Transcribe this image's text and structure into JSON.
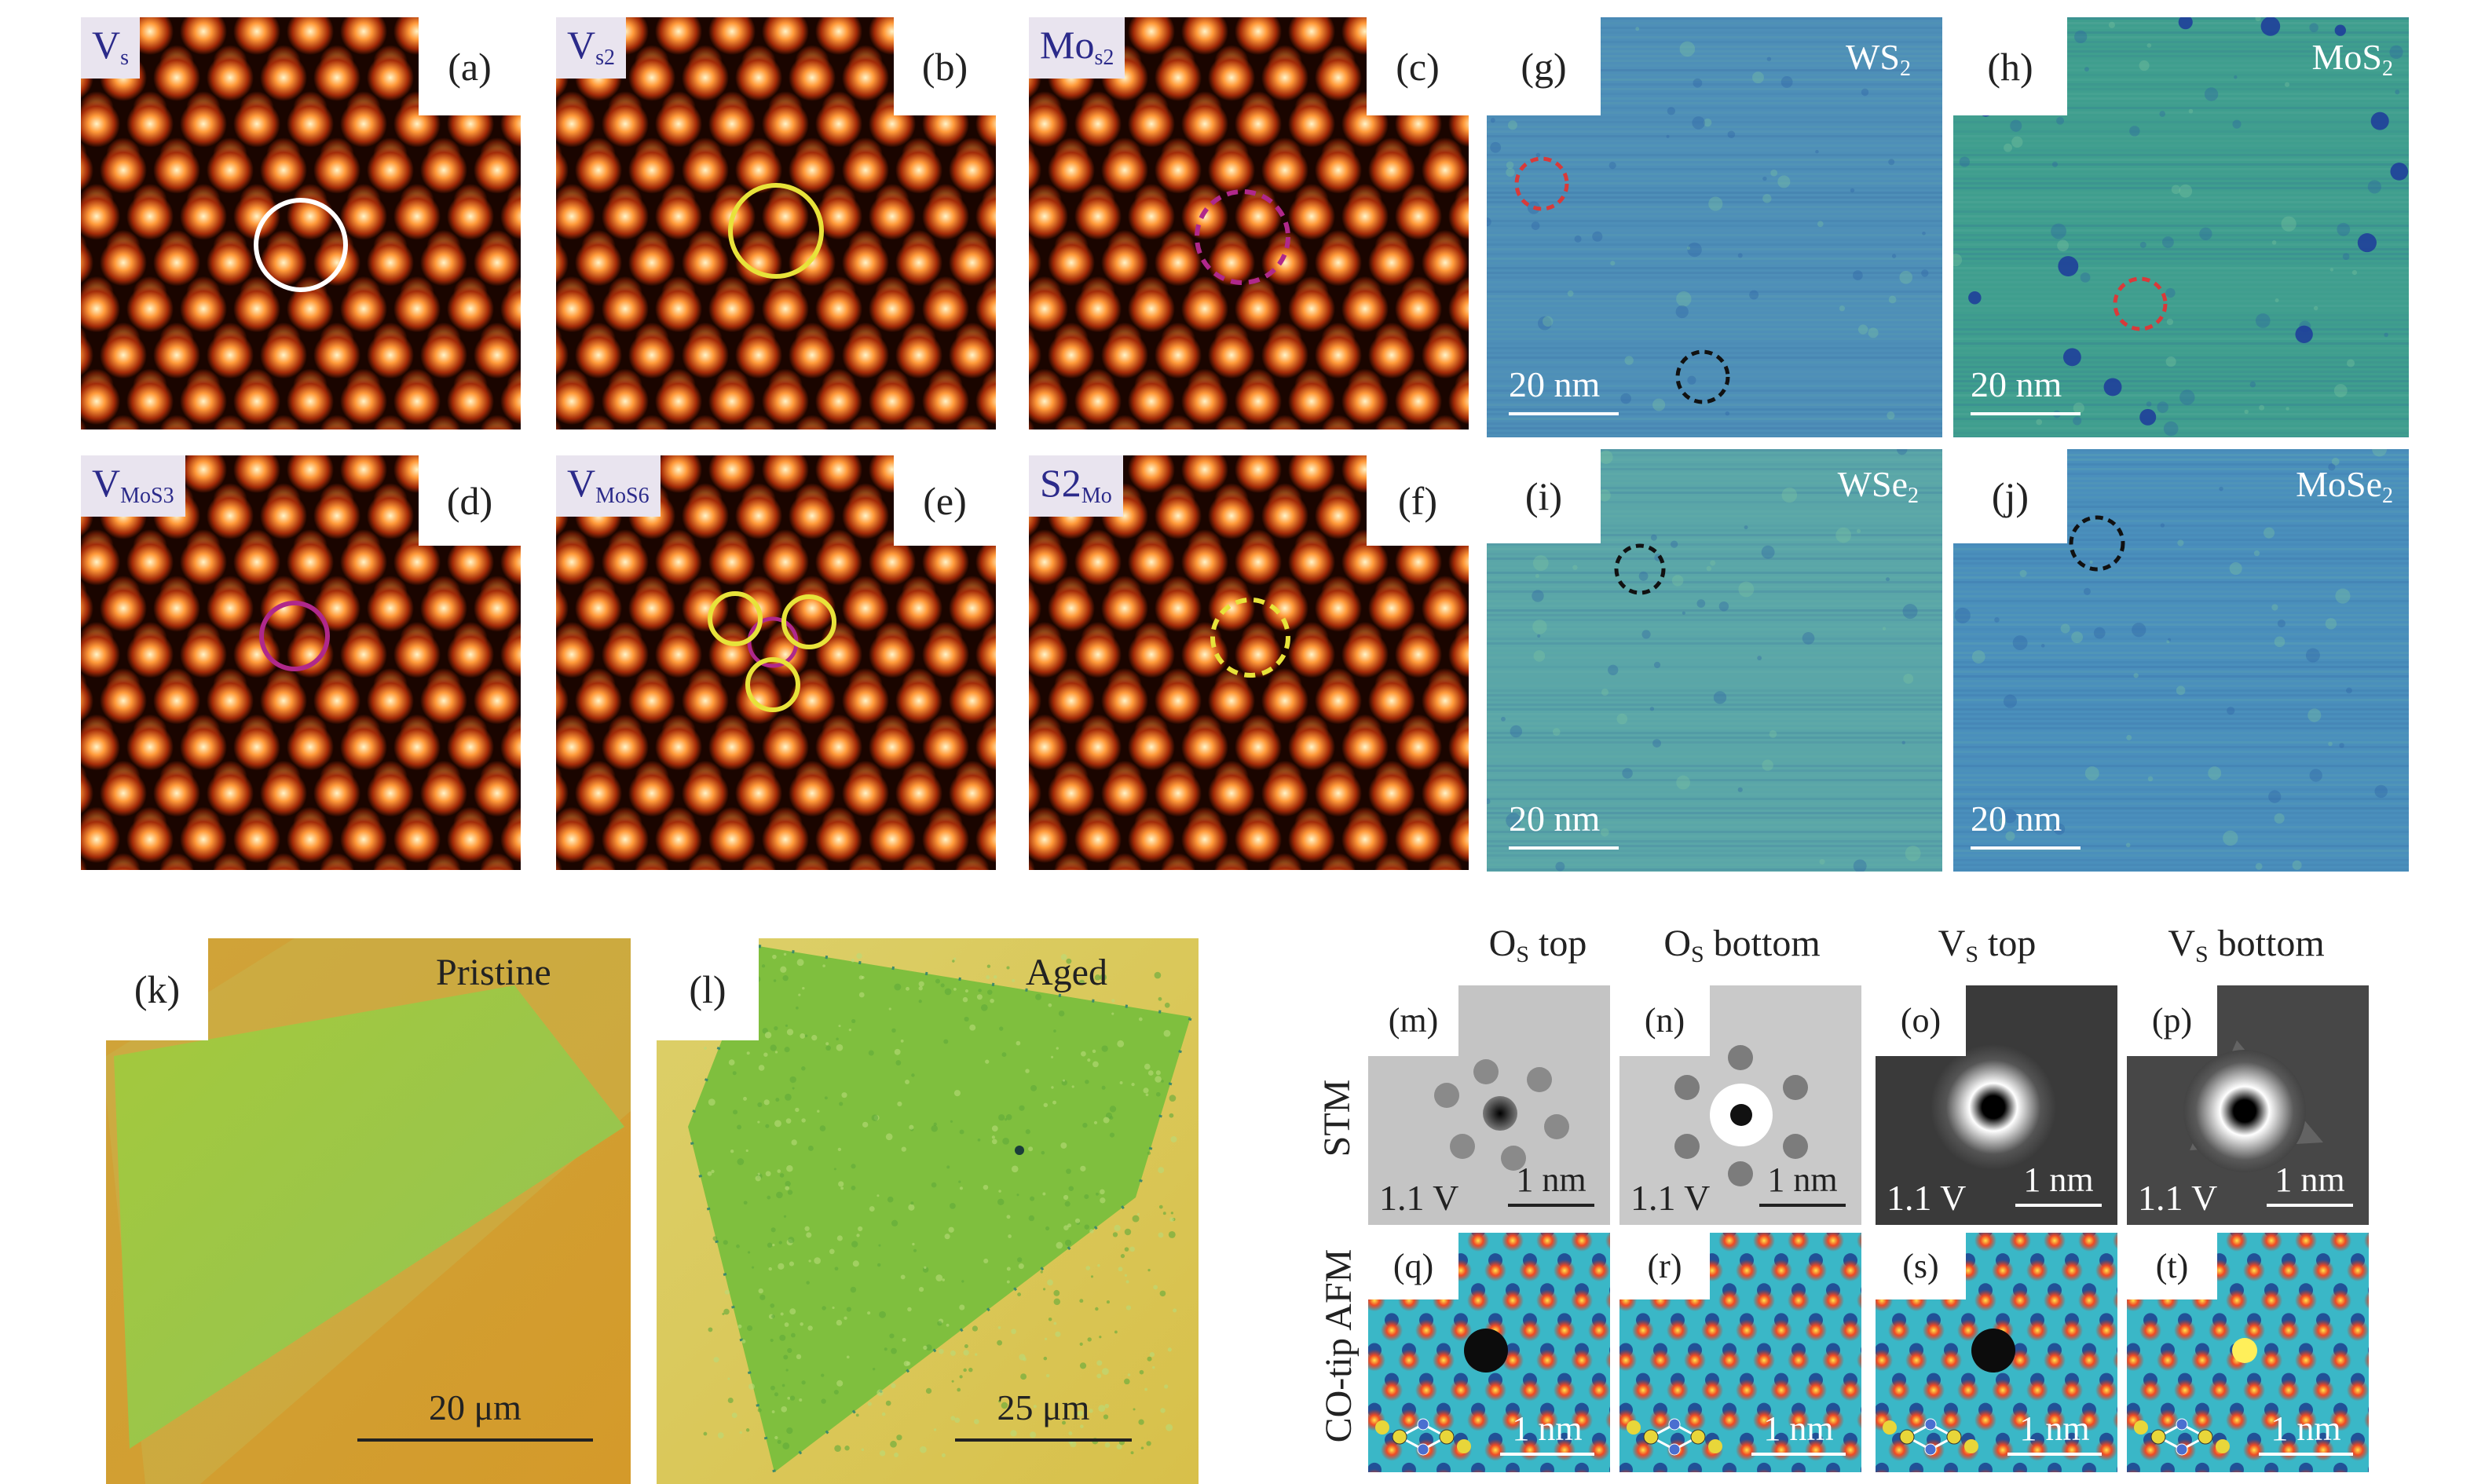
{
  "panels": {
    "a": {
      "tag": "(a)",
      "label": "V",
      "label_sub": "s"
    },
    "b": {
      "tag": "(b)",
      "label": "V",
      "label_sub": "s2"
    },
    "c": {
      "tag": "(c)",
      "label": "Mo",
      "label_sub": "s2"
    },
    "d": {
      "tag": "(d)",
      "label": "V",
      "label_sub": "MoS3"
    },
    "e": {
      "tag": "(e)",
      "label": "V",
      "label_sub": "MoS6"
    },
    "f": {
      "tag": "(f)",
      "label": "S2",
      "label_sub": "Mo"
    },
    "g": {
      "tag": "(g)",
      "title": "WS",
      "title_sub": "2",
      "scale": "20 nm"
    },
    "h": {
      "tag": "(h)",
      "title": "MoS",
      "title_sub": "2",
      "scale": "20 nm"
    },
    "i": {
      "tag": "(i)",
      "title": "WSe",
      "title_sub": "2",
      "scale": "20 nm"
    },
    "j": {
      "tag": "(j)",
      "title": "MoSe",
      "title_sub": "2",
      "scale": "20 nm"
    },
    "k": {
      "tag": "(k)",
      "title": "Pristine",
      "scale": "20 μm"
    },
    "l": {
      "tag": "(l)",
      "title": "Aged",
      "scale": "25 μm"
    },
    "m": {
      "tag": "(m)",
      "bias": "1.1 V",
      "scale": "1 nm"
    },
    "n": {
      "tag": "(n)",
      "bias": "1.1 V",
      "scale": "1 nm"
    },
    "o": {
      "tag": "(o)",
      "bias": "1.1 V",
      "scale": "1 nm"
    },
    "p": {
      "tag": "(p)",
      "bias": "1.1 V",
      "scale": "1 nm"
    },
    "q": {
      "tag": "(q)",
      "scale": "1 nm"
    },
    "r": {
      "tag": "(r)",
      "scale": "1 nm"
    },
    "s": {
      "tag": "(s)",
      "scale": "1 nm"
    },
    "t": {
      "tag": "(t)",
      "scale": "1 nm"
    }
  },
  "columns": [
    {
      "main": "O",
      "sub": "S",
      "rest": " top"
    },
    {
      "main": "O",
      "sub": "S",
      "rest": " bottom"
    },
    {
      "main": "V",
      "sub": "S",
      "rest": " top"
    },
    {
      "main": "V",
      "sub": "S",
      "rest": " bottom"
    }
  ],
  "rows": {
    "stm": "STM",
    "afm": "CO-tip AFM"
  },
  "colors": {
    "haadf_bg": "#1a0500",
    "haadf_atom": "#ffd27a",
    "stm_green": "#3f9e8e",
    "stm_blue": "#3a6fb0",
    "optical_bg": "#d8a52a",
    "optical_flake": "#9fc93c",
    "afm_bg": "#3ab7c7",
    "afm_atom": "#e8452a",
    "circle_white": "#ffffff",
    "circle_yellow": "#e8e23a",
    "circle_magenta": "#b0288a",
    "circle_red": "#d83a3a",
    "circle_black": "#111111"
  }
}
